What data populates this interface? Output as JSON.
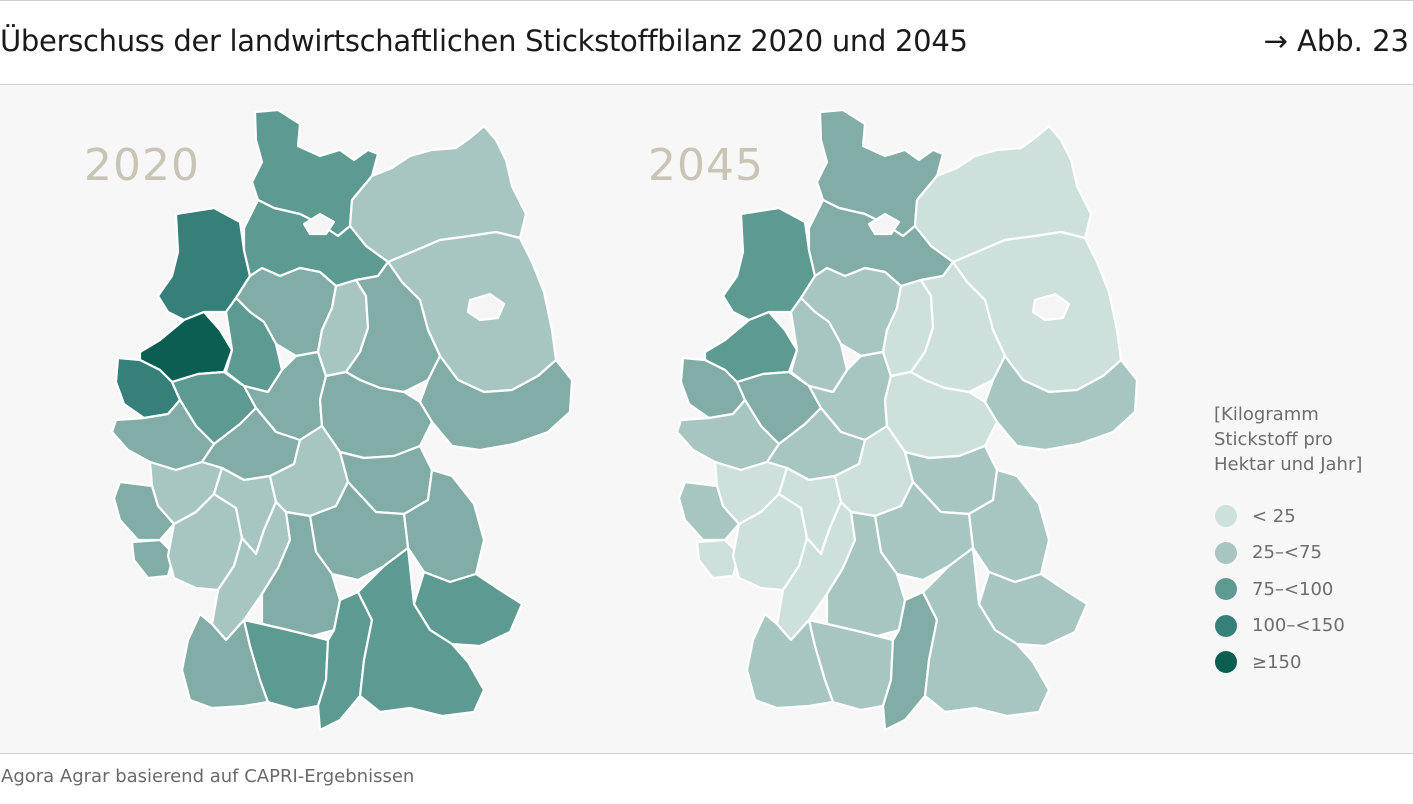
{
  "header": {
    "title": "Überschuss der landwirtschaftlichen Stickstoffbilanz 2020 und 2045",
    "figure_ref": "→ Abb. 23"
  },
  "maps": [
    {
      "year": "2020"
    },
    {
      "year": "2045"
    }
  ],
  "legend": {
    "title_lines": [
      "[Kilogramm",
      "Stickstoff pro",
      "Hektar und Jahr]"
    ],
    "items": [
      {
        "label": "< 25",
        "color": "#cde0dc"
      },
      {
        "label": "25–<75",
        "color": "#a8c6c1"
      },
      {
        "label": "75–<100",
        "color": "#5d9a91"
      },
      {
        "label": "100–<150",
        "color": "#37807a"
      },
      {
        "label": "≥150",
        "color": "#0a5e52"
      }
    ]
  },
  "source": "Agora Agrar basierend auf CAPRI-Ergebnissen"
}
